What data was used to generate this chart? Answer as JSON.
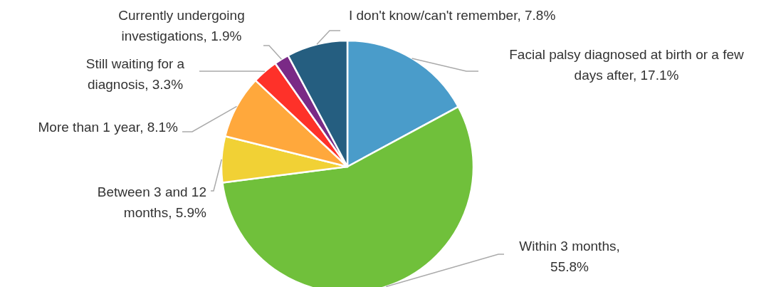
{
  "chart_data": {
    "type": "pie",
    "categories": [
      "Facial palsy diagnosed at birth or a few days after, 17.1%",
      "Within 3 months, 55.8%",
      "Between 3 and 12 months, 5.9%",
      "More than 1 year, 8.1%",
      "Still waiting for a diagnosis, 3.3%",
      "Currently undergoing investigations, 1.9%",
      "I don't know/can't remember, 7.8%"
    ],
    "values": [
      17.1,
      55.8,
      5.9,
      8.1,
      3.3,
      1.9,
      7.8
    ],
    "colors": [
      "#4a9cca",
      "#70c03b",
      "#f1d135",
      "#ffa83c",
      "#fe3129",
      "#7a2a86",
      "#255e80"
    ]
  }
}
